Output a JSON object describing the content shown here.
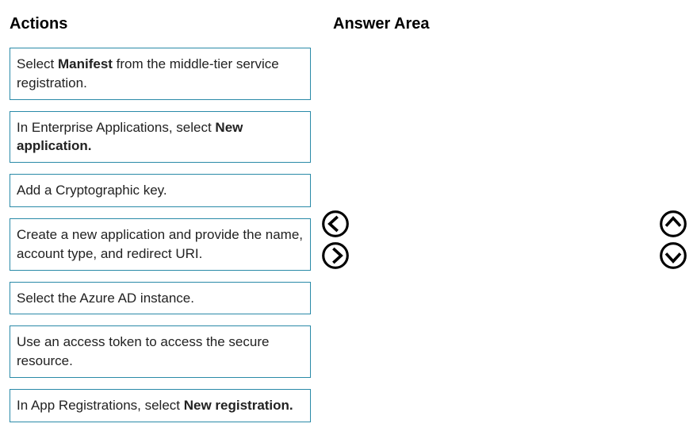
{
  "headings": {
    "actions": "Actions",
    "answer": "Answer Area"
  },
  "actions": [
    {
      "segments": [
        {
          "t": "Select ",
          "b": false
        },
        {
          "t": "Manifest ",
          "b": true
        },
        {
          "t": "from the middle-tier service registration.",
          "b": false
        }
      ]
    },
    {
      "segments": [
        {
          "t": "In Enterprise Applications, select ",
          "b": false
        },
        {
          "t": "New application.",
          "b": true
        }
      ]
    },
    {
      "segments": [
        {
          "t": "Add a Cryptographic key.",
          "b": false
        }
      ]
    },
    {
      "segments": [
        {
          "t": "Create a new application and provide the name, account type, and redirect URI.",
          "b": false
        }
      ]
    },
    {
      "segments": [
        {
          "t": "Select the Azure AD instance.",
          "b": false
        }
      ]
    },
    {
      "segments": [
        {
          "t": "Use an access token to access the secure resource.",
          "b": false
        }
      ]
    },
    {
      "segments": [
        {
          "t": "In App Registrations, select ",
          "b": false
        },
        {
          "t": "New registration.",
          "b": true
        }
      ]
    }
  ],
  "styles": {
    "border_color": "#2a8aa8",
    "text_color": "#222222",
    "heading_color": "#000000",
    "background": "#ffffff",
    "item_font_size": 17,
    "heading_font_size": 20,
    "icon_stroke": "#000000",
    "icon_fill": "#ffffff"
  },
  "icons": {
    "left": "arrow-left-circle",
    "right": "arrow-right-circle",
    "up": "arrow-up-circle",
    "down": "arrow-down-circle"
  }
}
